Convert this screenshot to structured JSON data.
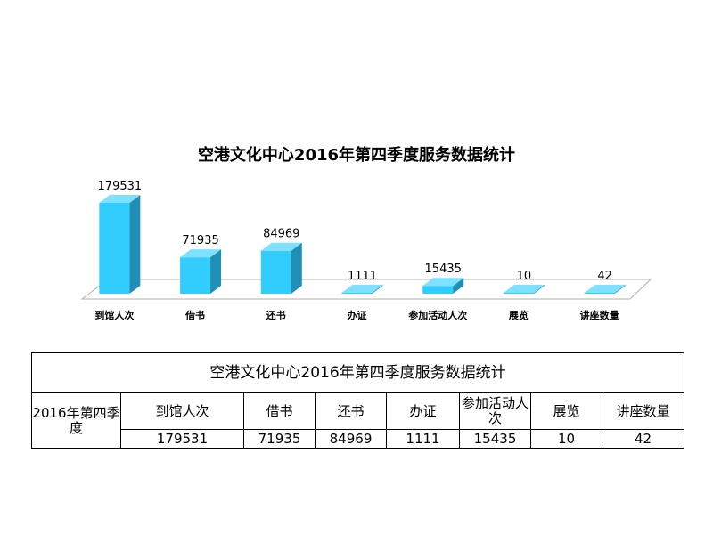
{
  "chart_data": {
    "type": "bar",
    "title": "空港文化中心2016年第四季度服务数据统计",
    "categories": [
      "到馆人次",
      "借书",
      "还书",
      "办证",
      "参加活动人次",
      "展览",
      "讲座数量"
    ],
    "values": [
      179531,
      71935,
      84969,
      1111,
      15435,
      10,
      42
    ],
    "ylim": [
      0,
      179531
    ],
    "grid": false,
    "legend": "none",
    "bar_color": "#33ccff",
    "bar_side_color": "#1f8fb5",
    "bar_top_color": "#7fe0ff",
    "floor_color": "#ffffff",
    "floor_edge_color": "#b0b0b0"
  },
  "table": {
    "title": "空港文化中心2016年第四季度服务数据统计",
    "row_header": "2016年第四季度",
    "headers": [
      "到馆人次",
      "借书",
      "还书",
      "办证",
      "参加活动人次",
      "展览",
      "讲座数量"
    ],
    "values": [
      "179531",
      "71935",
      "84969",
      "1111",
      "15435",
      "10",
      "42"
    ]
  }
}
